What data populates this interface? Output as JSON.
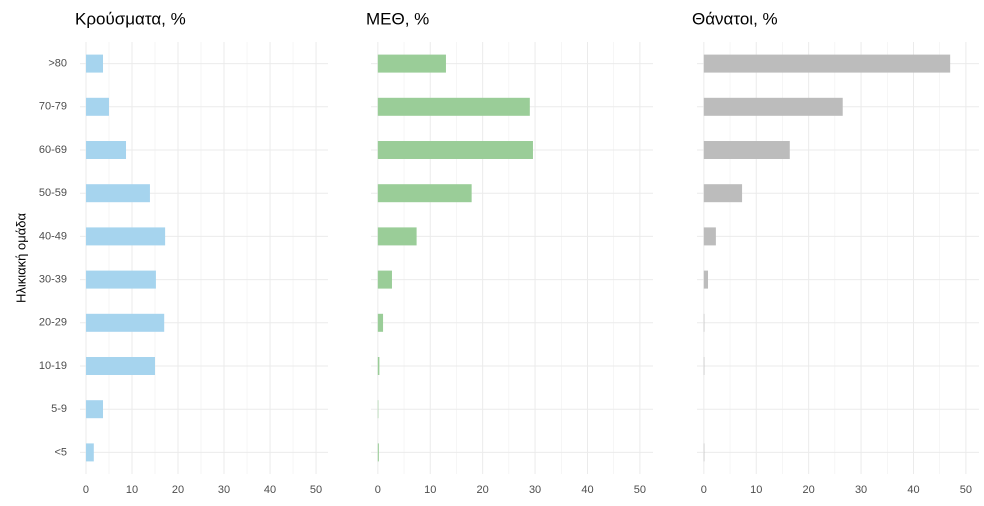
{
  "chart_data": [
    {
      "type": "bar",
      "title": "Κρούσματα, %",
      "y_label": "Ηλικιακή ομάδα",
      "categories": [
        ">80",
        "70-79",
        "60-69",
        "50-59",
        "40-49",
        "30-39",
        "20-29",
        "10-19",
        "5-9",
        "<5"
      ],
      "values": [
        3.7,
        5.0,
        8.7,
        13.9,
        17.2,
        15.2,
        17.0,
        15.0,
        3.7,
        1.7
      ],
      "color": "#a6d4ee",
      "xlim": [
        -1.3,
        52.6
      ],
      "xticks": [
        0,
        10,
        20,
        30,
        40,
        50
      ],
      "grid": true
    },
    {
      "type": "bar",
      "title": "ΜΕΘ, %",
      "values": [
        13.0,
        29.0,
        29.6,
        17.9,
        7.4,
        2.7,
        1.0,
        0.3,
        0.1,
        0.2
      ],
      "color": "#9acd98",
      "xlim": [
        -1.3,
        52.5
      ],
      "xticks": [
        0,
        10,
        20,
        30,
        40,
        50
      ],
      "grid": true
    },
    {
      "type": "bar",
      "title": "Θάνατοι, %",
      "values": [
        47.0,
        26.5,
        16.4,
        7.3,
        2.3,
        0.8,
        0.1,
        0.1,
        0,
        0.1
      ],
      "color": "#bcbcbc",
      "xlim": [
        -1.3,
        52.5
      ],
      "xticks": [
        0,
        10,
        20,
        30,
        40,
        50
      ],
      "grid": true
    }
  ]
}
